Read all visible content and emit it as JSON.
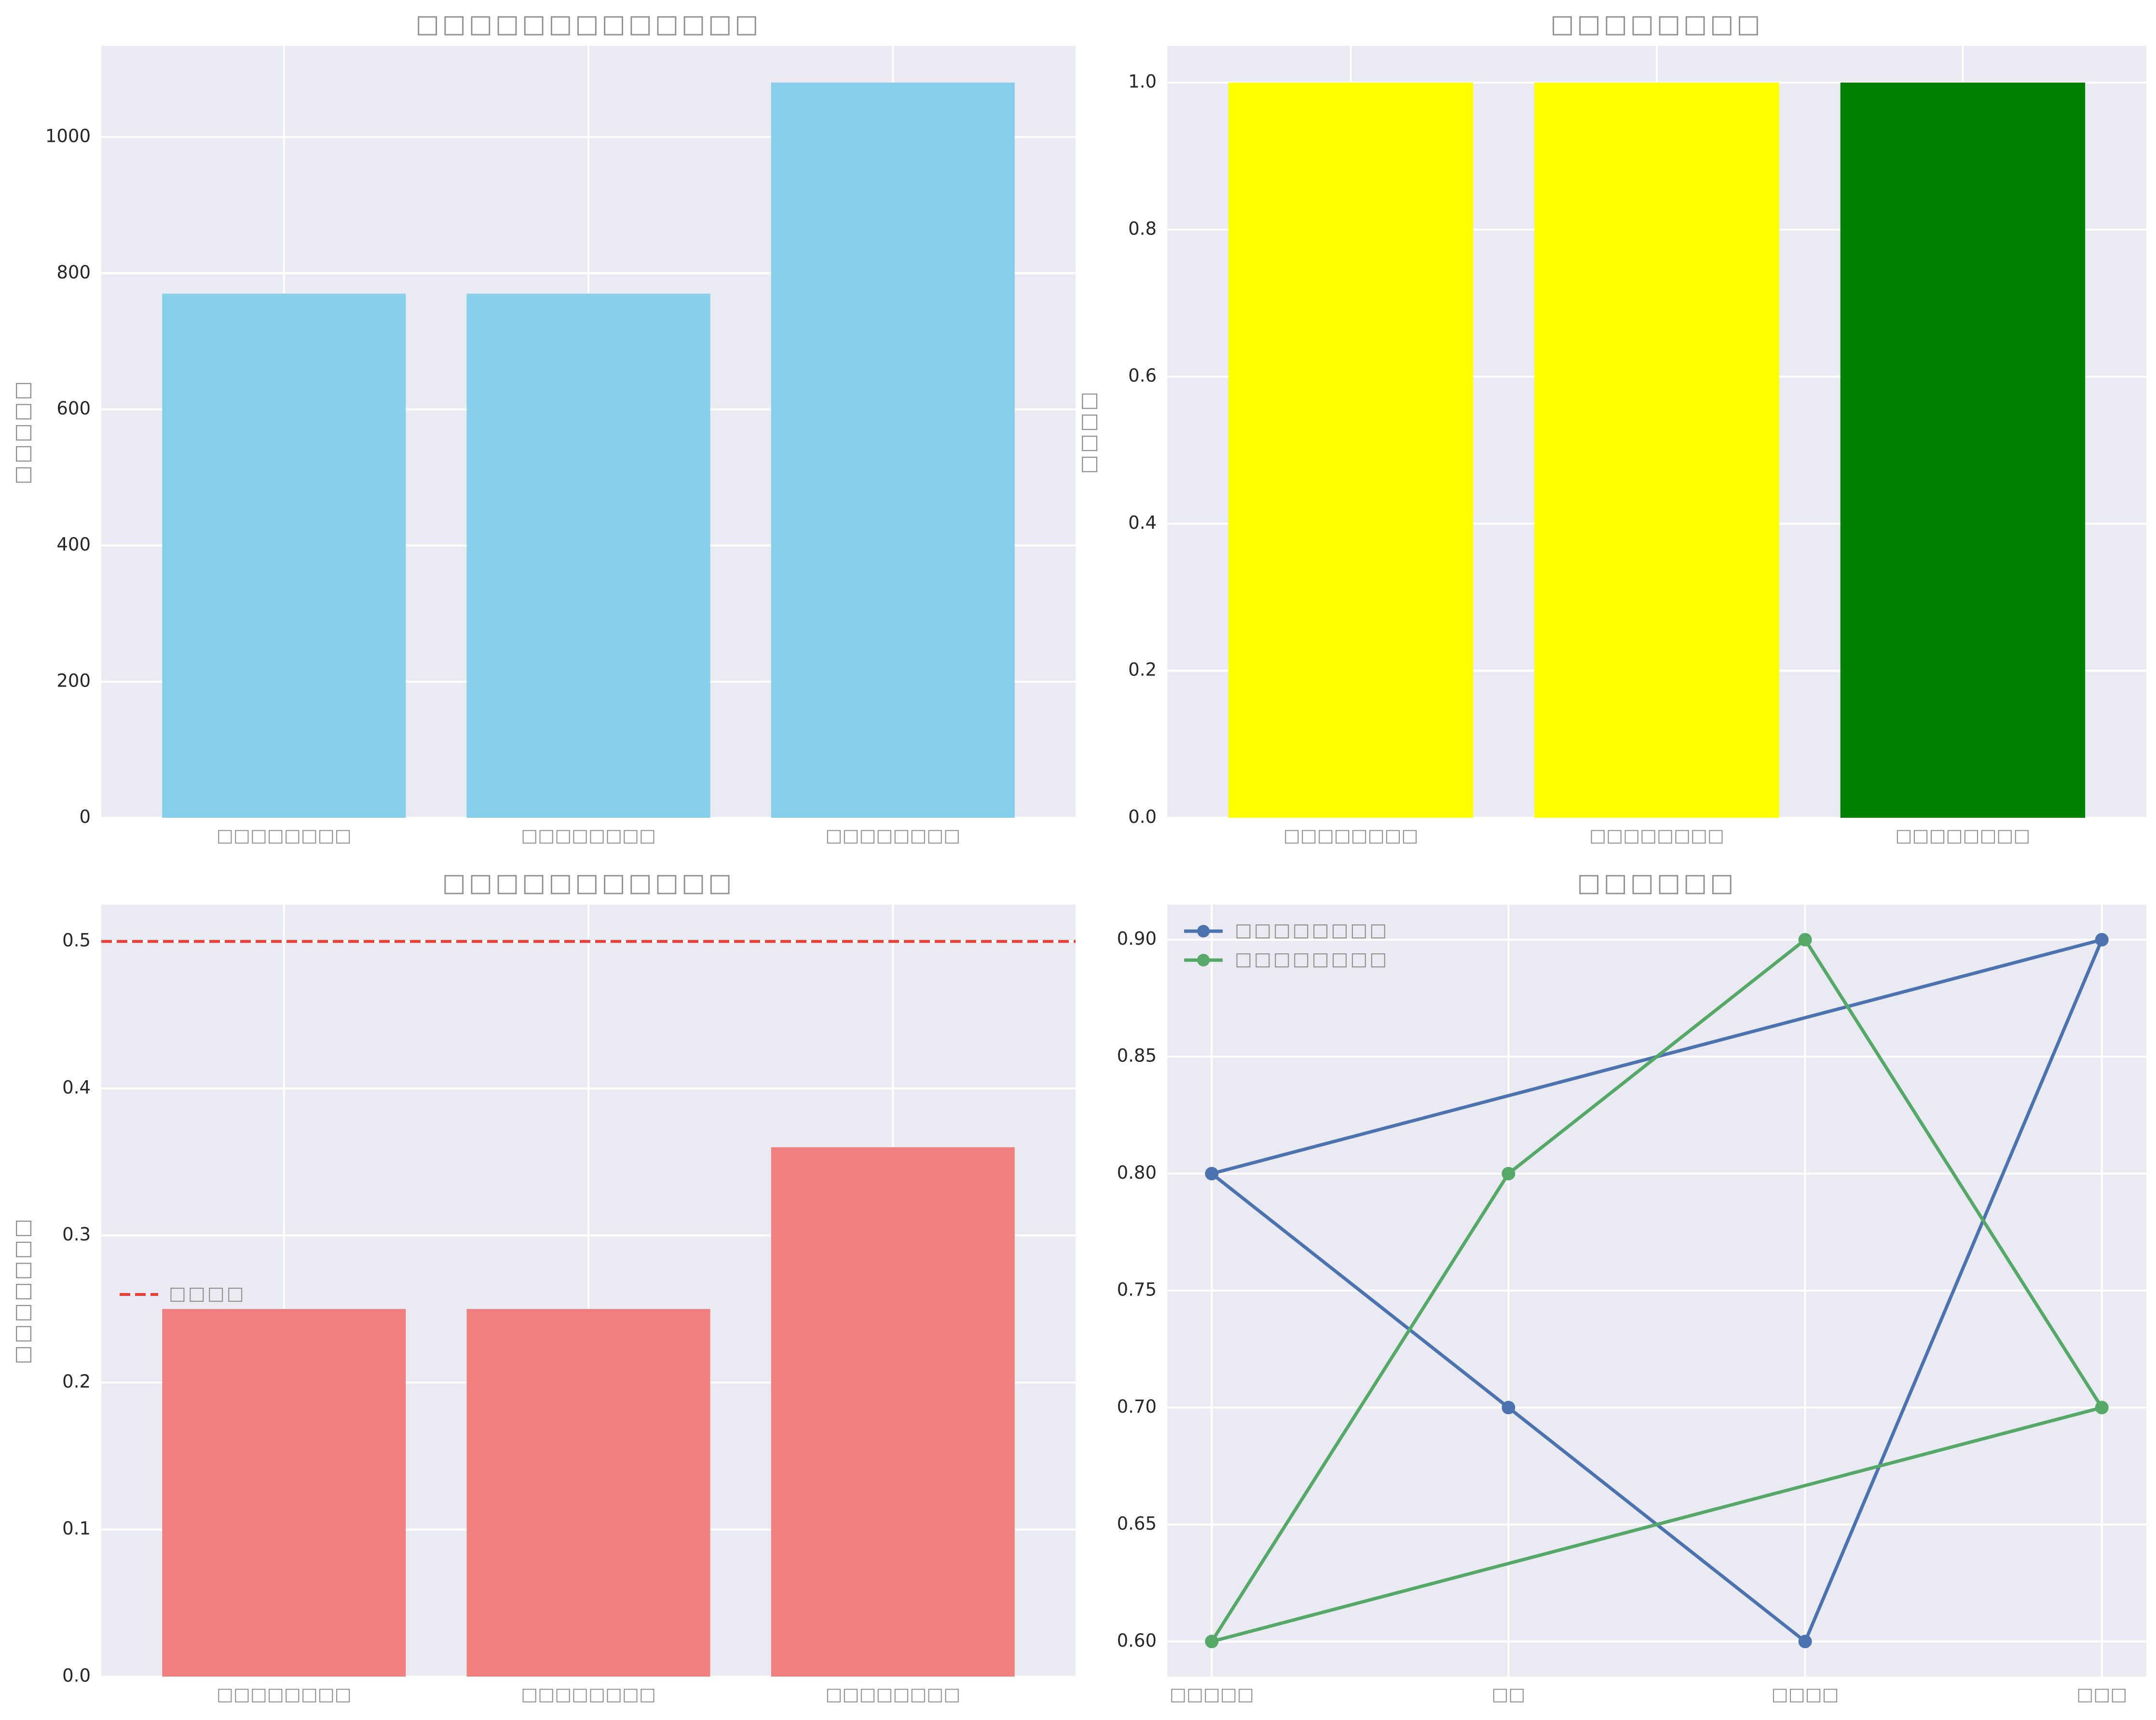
{
  "chart_data": [
    {
      "id": "tl",
      "type": "bar",
      "title": "□□□□□□□□□□□□□",
      "ylabel": "□□□□□",
      "categories": [
        "□□□□□□□□",
        "□□□□□□□□",
        "□□□□□□□□"
      ],
      "values": [
        770,
        770,
        1080
      ],
      "bar_colors": [
        "#87CEEB",
        "#87CEEB",
        "#87CEEB"
      ],
      "ylim": [
        0,
        1134
      ],
      "yticks": [
        0,
        200,
        400,
        600,
        800,
        1000
      ],
      "ytick_labels": [
        "0",
        "200",
        "400",
        "600",
        "800",
        "1000"
      ],
      "grid": true
    },
    {
      "id": "tr",
      "type": "bar",
      "title": "□□□□□□□□",
      "ylabel": "□□□□",
      "categories": [
        "□□□□□□□□",
        "□□□□□□□□",
        "□□□□□□□□"
      ],
      "values": [
        1.0,
        1.0,
        1.0
      ],
      "bar_colors": [
        "#FFFF00",
        "#FFFF00",
        "#008000"
      ],
      "ylim": [
        0,
        1.05
      ],
      "yticks": [
        0,
        0.2,
        0.4,
        0.6,
        0.8,
        1.0
      ],
      "ytick_labels": [
        "0.0",
        "0.2",
        "0.4",
        "0.6",
        "0.8",
        "1.0"
      ],
      "grid": true
    },
    {
      "id": "bl",
      "type": "bar",
      "title": "□□□□□□□□□□□",
      "ylabel": "□□□□□□□",
      "categories": [
        "□□□□□□□□",
        "□□□□□□□□",
        "□□□□□□□□"
      ],
      "values": [
        0.25,
        0.25,
        0.36
      ],
      "bar_colors": [
        "#F08080",
        "#F08080",
        "#F08080"
      ],
      "ylim": [
        0,
        0.525
      ],
      "yticks": [
        0,
        0.1,
        0.2,
        0.3,
        0.4,
        0.5
      ],
      "ytick_labels": [
        "0.0",
        "0.1",
        "0.2",
        "0.3",
        "0.4",
        "0.5"
      ],
      "hline": {
        "y": 0.5,
        "color": "#E8413A",
        "label": "□□□□"
      },
      "legend_position": "center-left",
      "grid": true
    },
    {
      "id": "br",
      "type": "line",
      "title": "□□□□□□",
      "ylabel": "",
      "categories": [
        "□□□□□",
        "□□",
        "□□□□",
        "□□□"
      ],
      "series": [
        {
          "name": "□□□□□□□□",
          "color": "#4C72B0",
          "values": [
            0.8,
            0.7,
            0.6,
            0.9
          ]
        },
        {
          "name": "□□□□□□□□",
          "color": "#55A868",
          "values": [
            0.6,
            0.8,
            0.9,
            0.7
          ]
        }
      ],
      "closed": true,
      "ylim": [
        0.585,
        0.915
      ],
      "yticks": [
        0.6,
        0.65,
        0.7,
        0.75,
        0.8,
        0.85,
        0.9
      ],
      "ytick_labels": [
        "0.60",
        "0.65",
        "0.70",
        "0.75",
        "0.80",
        "0.85",
        "0.90"
      ],
      "legend_position": "top-left",
      "grid": true
    }
  ]
}
